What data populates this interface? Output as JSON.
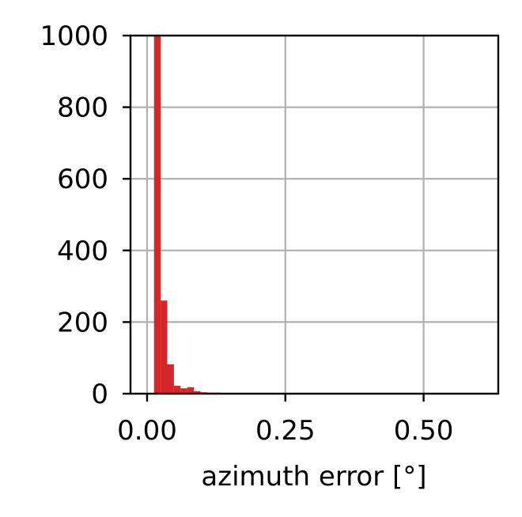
{
  "chart_data": {
    "type": "bar",
    "title": "",
    "xlabel": "azimuth error [°]",
    "ylabel": "",
    "xlim": [
      -0.03,
      0.635
    ],
    "ylim": [
      0,
      1000
    ],
    "xticks": [
      0.0,
      0.25,
      0.5
    ],
    "xtick_labels": [
      "0.00",
      "0.25",
      "0.50"
    ],
    "yticks": [
      0,
      200,
      400,
      600,
      800,
      1000
    ],
    "ytick_labels": [
      "0",
      "200",
      "400",
      "600",
      "800",
      "1000"
    ],
    "grid": true,
    "bar_color": "#d62728",
    "bins": [
      {
        "x0": 0.0,
        "x1": 0.0125,
        "count": 0
      },
      {
        "x0": 0.0125,
        "x1": 0.0245,
        "count": 1000
      },
      {
        "x0": 0.0245,
        "x1": 0.0365,
        "count": 260
      },
      {
        "x0": 0.0365,
        "x1": 0.0485,
        "count": 82
      },
      {
        "x0": 0.0485,
        "x1": 0.0605,
        "count": 22
      },
      {
        "x0": 0.0605,
        "x1": 0.0725,
        "count": 15
      },
      {
        "x0": 0.0725,
        "x1": 0.0845,
        "count": 18
      },
      {
        "x0": 0.0845,
        "x1": 0.0965,
        "count": 7
      },
      {
        "x0": 0.0965,
        "x1": 0.1085,
        "count": 4
      },
      {
        "x0": 0.1085,
        "x1": 0.1205,
        "count": 3
      },
      {
        "x0": 0.1205,
        "x1": 0.1325,
        "count": 3
      },
      {
        "x0": 0.1325,
        "x1": 0.1445,
        "count": 1
      },
      {
        "x0": 0.1445,
        "x1": 0.1565,
        "count": 1
      },
      {
        "x0": 0.1565,
        "x1": 0.1685,
        "count": 1
      },
      {
        "x0": 0.1685,
        "x1": 0.1805,
        "count": 1
      },
      {
        "x0": 0.2105,
        "x1": 0.2225,
        "count": 1
      },
      {
        "x0": 0.5805,
        "x1": 0.5925,
        "count": 1
      }
    ]
  }
}
